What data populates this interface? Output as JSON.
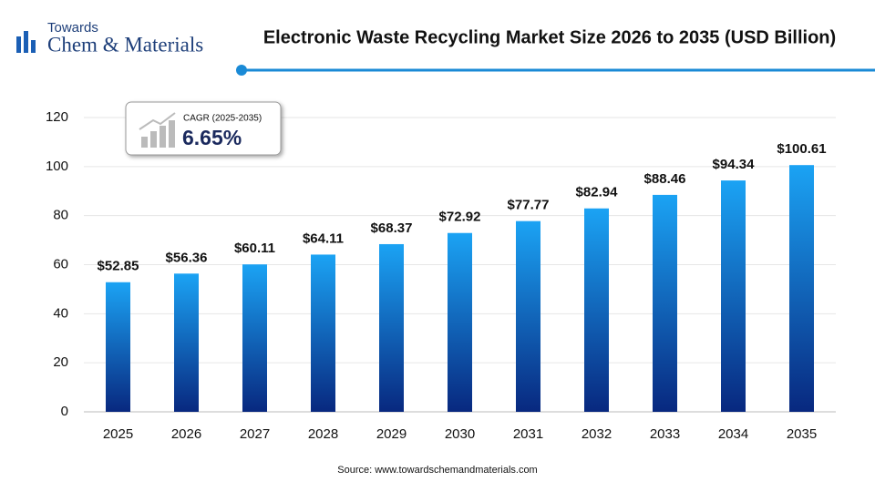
{
  "chart_data": {
    "type": "bar",
    "title": "Electronic Waste Recycling Market Size 2026 to 2035 (USD Billion)",
    "brand": {
      "top": "Towards",
      "main": "Chem & Materials"
    },
    "annotation": {
      "label": "CAGR (2025-2035)",
      "value": "6.65%"
    },
    "source": "Source: www.towardschemandmaterials.com",
    "categories": [
      "2025",
      "2026",
      "2027",
      "2028",
      "2029",
      "2030",
      "2031",
      "2032",
      "2033",
      "2034",
      "2035"
    ],
    "values": [
      52.85,
      56.36,
      60.11,
      64.11,
      68.37,
      72.92,
      77.77,
      82.94,
      88.46,
      94.34,
      100.61
    ],
    "value_labels": [
      "$52.85",
      "$56.36",
      "$60.11",
      "$64.11",
      "$68.37",
      "$72.92",
      "$77.77",
      "$82.94",
      "$88.46",
      "$94.34",
      "$100.61"
    ],
    "gradient": [
      "#1ba3f4",
      "#08287f"
    ],
    "ylim": [
      0,
      120
    ],
    "yticks": [
      0,
      20,
      40,
      60,
      80,
      100,
      120
    ],
    "grid": true
  }
}
